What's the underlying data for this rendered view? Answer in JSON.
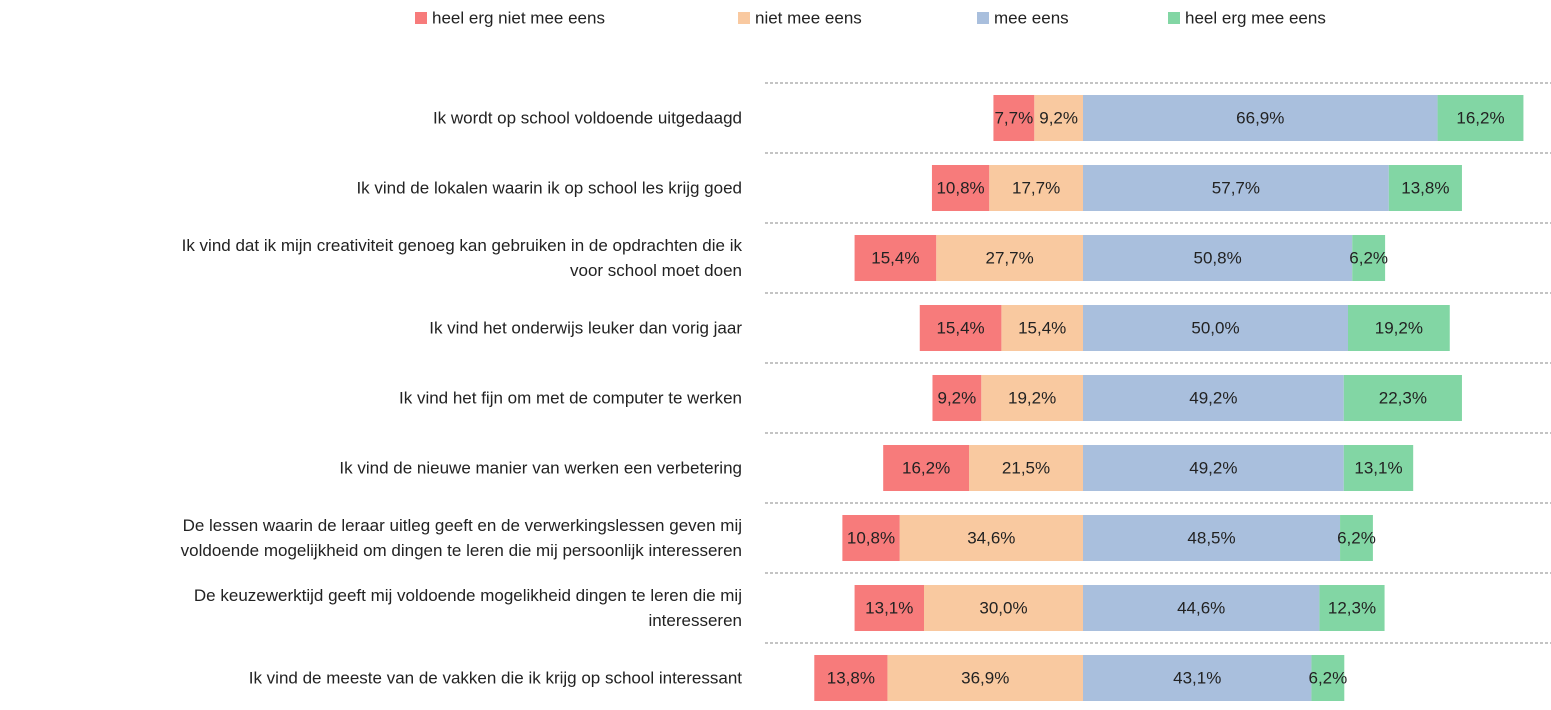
{
  "chart_data": {
    "type": "bar",
    "orientation": "horizontal",
    "stacking": "diverging",
    "categories": [
      "Ik wordt op school voldoende uitgedaagd",
      "Ik vind de lokalen waarin ik op school les krijg goed",
      "Ik vind dat ik mijn creativiteit genoeg kan gebruiken in de opdrachten die ik\nvoor school moet doen",
      "Ik vind het onderwijs leuker dan vorig jaar",
      "Ik vind het fijn om met de computer te werken",
      "Ik vind de nieuwe manier van werken een verbetering",
      "De lessen waarin de leraar uitleg geeft en de verwerkingslessen geven mij\nvoldoende mogelijkheid om dingen te leren die mij persoonlijk interesseren",
      "De keuzewerktijd geeft mij voldoende mogelikheid dingen te leren die mij\ninteresseren",
      "Ik vind de meeste van de vakken die ik krijg op school interessant"
    ],
    "series": [
      {
        "name": "heel erg niet mee eens",
        "color": "#f77b7b",
        "values": [
          7.7,
          10.8,
          15.4,
          15.4,
          9.2,
          16.2,
          10.8,
          13.1,
          13.8
        ],
        "value_labels": [
          "7,7%",
          "10,8%",
          "15,4%",
          "15,4%",
          "9,2%",
          "16,2%",
          "10,8%",
          "13,1%",
          "13,8%"
        ]
      },
      {
        "name": "niet mee eens",
        "color": "#f9c9a0",
        "values": [
          9.2,
          17.7,
          27.7,
          15.4,
          19.2,
          21.5,
          34.6,
          30.0,
          36.9
        ],
        "value_labels": [
          "9,2%",
          "17,7%",
          "27,7%",
          "15,4%",
          "19,2%",
          "21,5%",
          "34,6%",
          "30,0%",
          "36,9%"
        ]
      },
      {
        "name": "mee eens",
        "color": "#a9bfdd",
        "values": [
          66.9,
          57.7,
          50.8,
          50.0,
          49.2,
          49.2,
          48.5,
          44.6,
          43.1
        ],
        "value_labels": [
          "66,9%",
          "57,7%",
          "50,8%",
          "50,0%",
          "49,2%",
          "49,2%",
          "48,5%",
          "44,6%",
          "43,1%"
        ]
      },
      {
        "name": "heel erg mee eens",
        "color": "#82d6a4",
        "values": [
          16.2,
          13.8,
          6.2,
          19.2,
          22.3,
          13.1,
          6.2,
          12.3,
          6.2
        ],
        "value_labels": [
          "16,2%",
          "13,8%",
          "6,2%",
          "19,2%",
          "22,3%",
          "13,1%",
          "6,2%",
          "12,3%",
          "6,2%"
        ]
      }
    ]
  }
}
